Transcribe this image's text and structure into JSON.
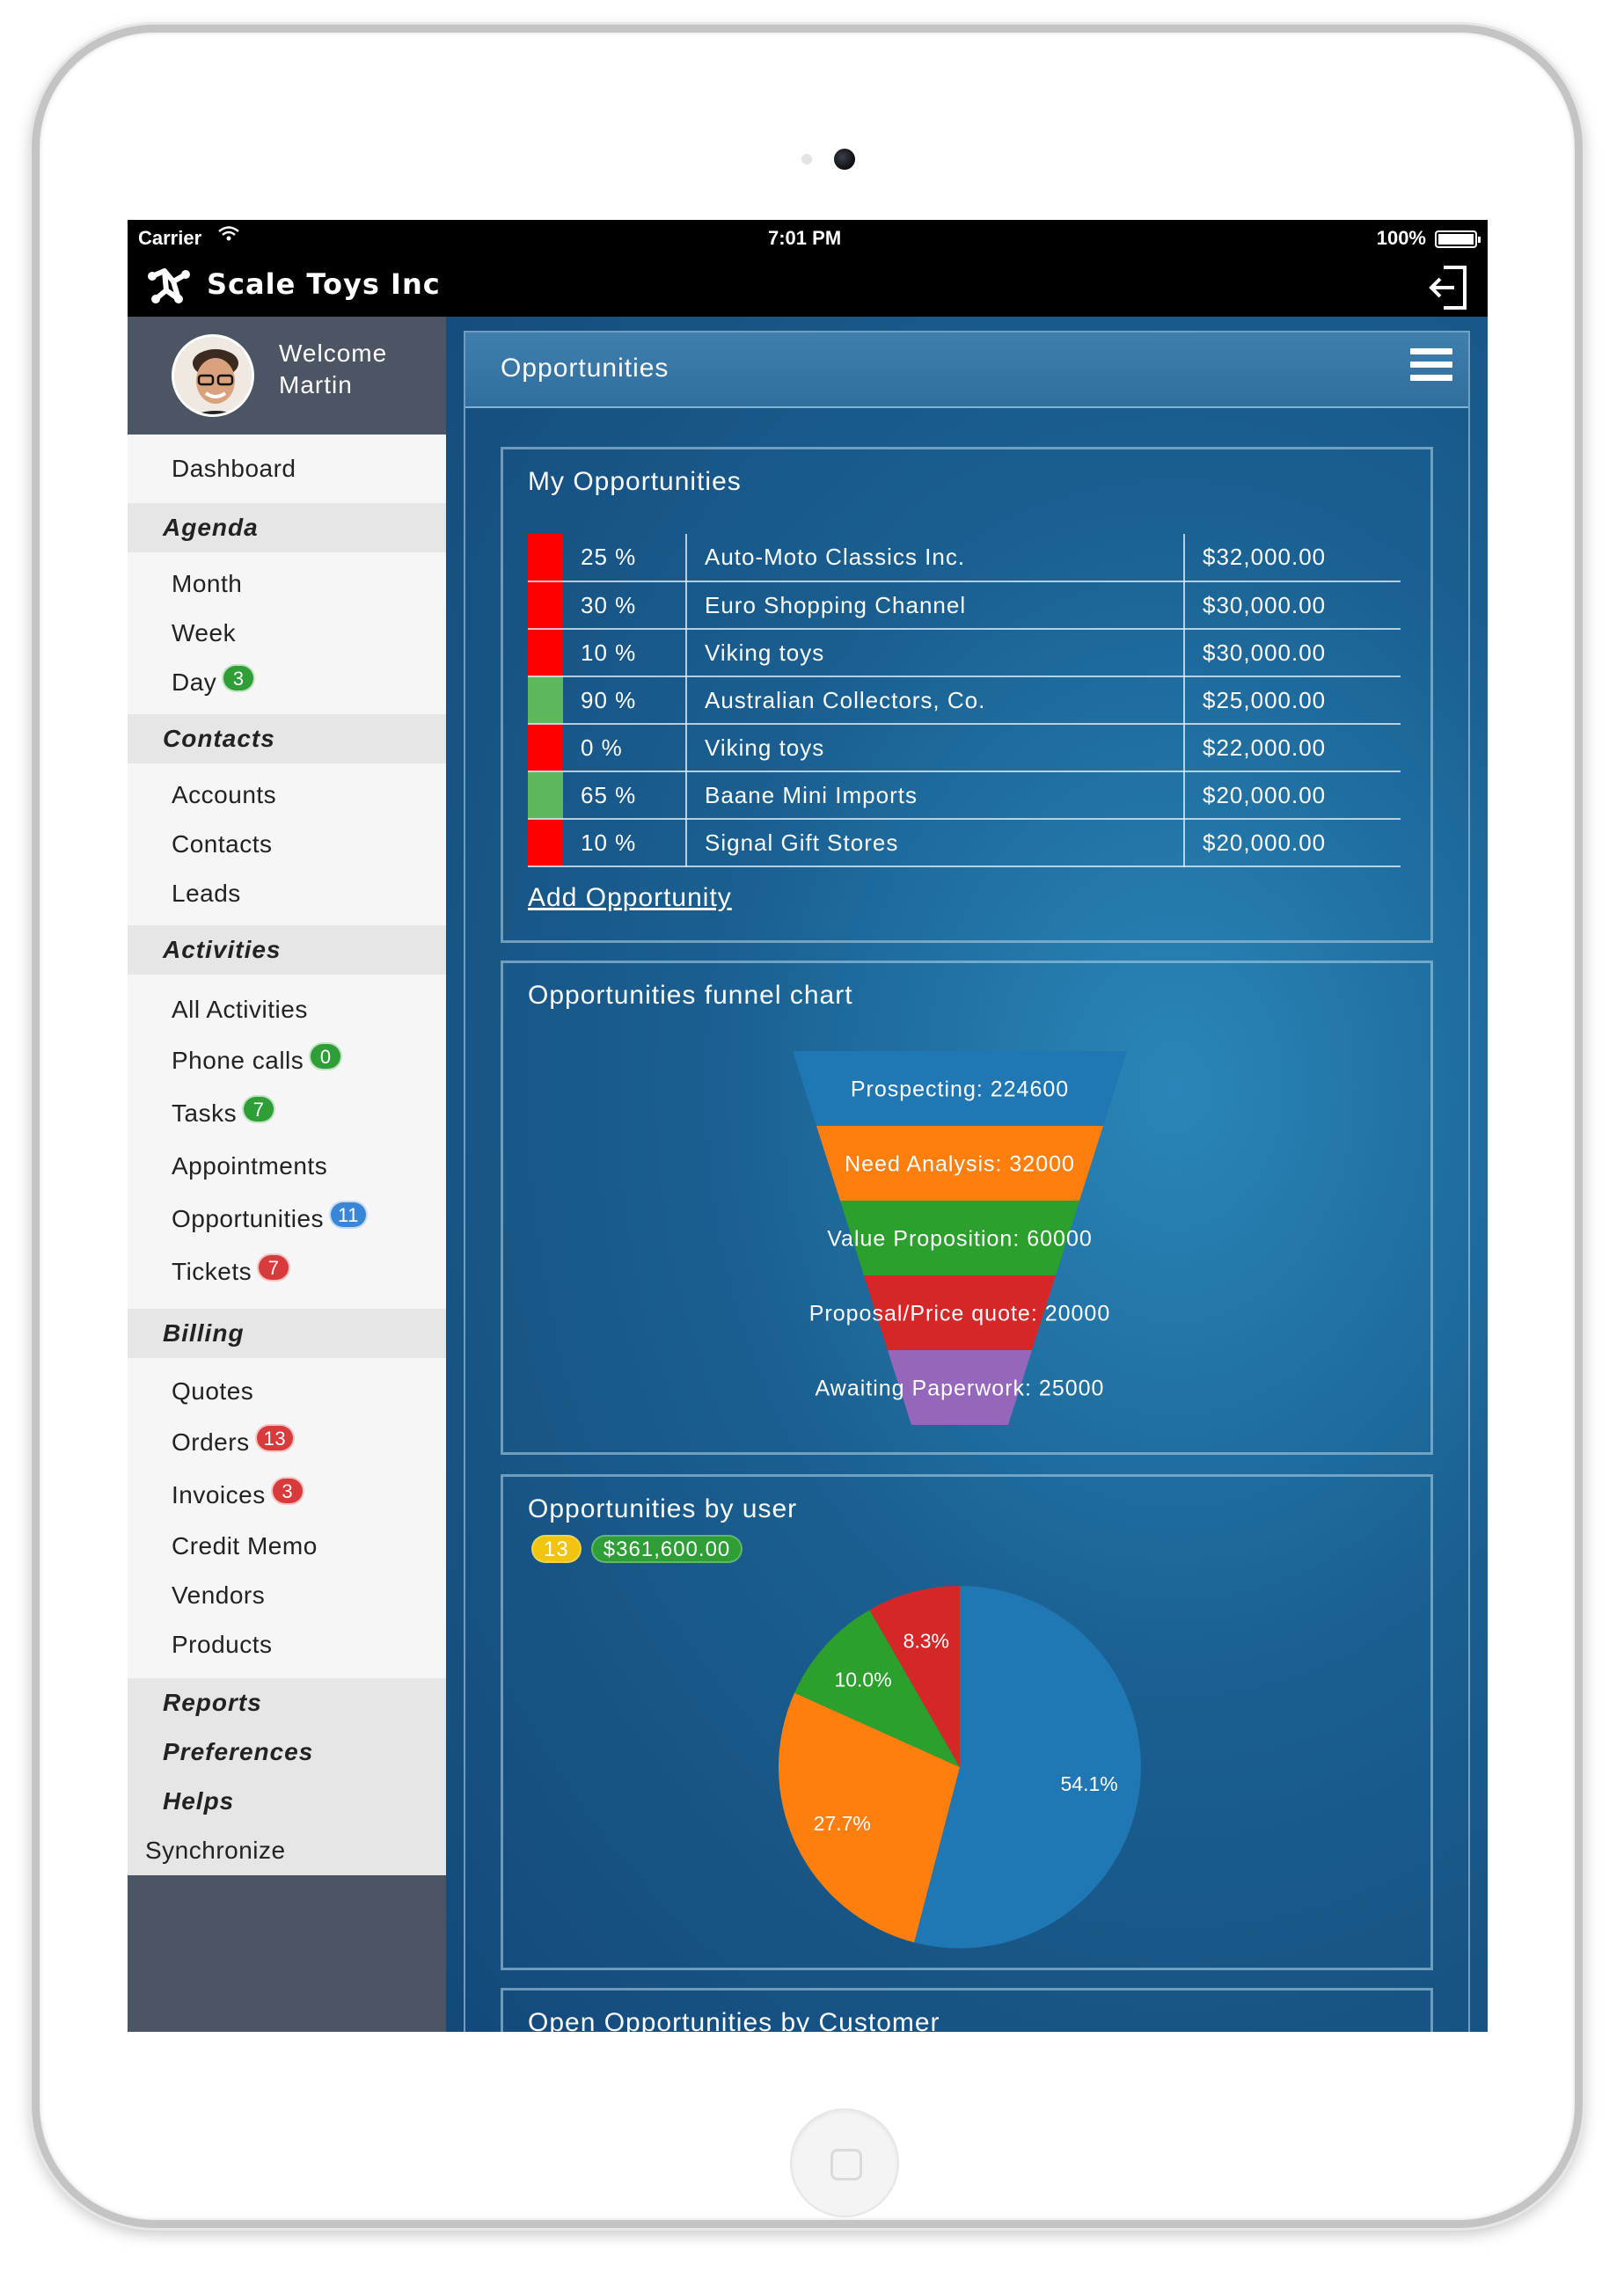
{
  "status_bar": {
    "carrier": "Carrier",
    "time": "7:01 PM",
    "battery": "100%"
  },
  "app": {
    "title": "Scale Toys Inc"
  },
  "user": {
    "welcome": "Welcome",
    "name": "Martin"
  },
  "sidebar": {
    "dashboard": "Dashboard",
    "agenda": {
      "title": "Agenda",
      "items": [
        {
          "label": "Month"
        },
        {
          "label": "Week"
        },
        {
          "label": "Day",
          "badge": "3"
        }
      ]
    },
    "contacts": {
      "title": "Contacts",
      "items": [
        {
          "label": "Accounts"
        },
        {
          "label": "Contacts"
        },
        {
          "label": "Leads"
        }
      ]
    },
    "activities": {
      "title": "Activities",
      "items": [
        {
          "label": "All Activities"
        },
        {
          "label": "Phone calls",
          "badge": "0"
        },
        {
          "label": "Tasks",
          "badge": "7"
        },
        {
          "label": "Appointments"
        },
        {
          "label": "Opportunities",
          "badge": "11"
        },
        {
          "label": "Tickets",
          "badge": "7"
        }
      ]
    },
    "billing": {
      "title": "Billing",
      "items": [
        {
          "label": "Quotes"
        },
        {
          "label": "Orders",
          "badge": "13"
        },
        {
          "label": "Invoices",
          "badge": "3"
        },
        {
          "label": "Credit Memo"
        },
        {
          "label": "Vendors"
        },
        {
          "label": "Products"
        }
      ]
    },
    "reports": "Reports",
    "preferences": "Preferences",
    "helps": "Helps",
    "synchronize": "Synchronize"
  },
  "page": {
    "title": "Opportunities"
  },
  "my_opportunities": {
    "title": "My Opportunities",
    "add_link": "Add Opportunity",
    "colors": {
      "red": "#ff0000",
      "green": "#5cb85c"
    },
    "rows": [
      {
        "status": "red",
        "pct": "25 %",
        "name": "Auto-Moto Classics Inc.",
        "amount": "$32,000.00"
      },
      {
        "status": "red",
        "pct": "30 %",
        "name": "Euro Shopping Channel",
        "amount": "$30,000.00"
      },
      {
        "status": "red",
        "pct": "10 %",
        "name": "Viking toys",
        "amount": "$30,000.00"
      },
      {
        "status": "green",
        "pct": "90 %",
        "name": "Australian Collectors, Co.",
        "amount": "$25,000.00"
      },
      {
        "status": "red",
        "pct": "0 %",
        "name": "Viking toys",
        "amount": "$22,000.00"
      },
      {
        "status": "green",
        "pct": "65 %",
        "name": "Baane Mini Imports",
        "amount": "$20,000.00"
      },
      {
        "status": "red",
        "pct": "10 %",
        "name": "Signal Gift Stores",
        "amount": "$20,000.00"
      }
    ]
  },
  "funnel": {
    "title": "Opportunities funnel chart",
    "stages": [
      {
        "label": "Prospecting: 224600",
        "color": "#1f77b4"
      },
      {
        "label": "Need Analysis: 32000",
        "color": "#ff7f0e"
      },
      {
        "label": "Value Proposition: 60000",
        "color": "#2ca02c"
      },
      {
        "label": "Proposal/Price quote: 20000",
        "color": "#d62728"
      },
      {
        "label": "Awaiting Paperwork: 25000",
        "color": "#9467bd"
      }
    ]
  },
  "by_user": {
    "title": "Opportunities by user",
    "count_badge": "13",
    "total_badge": "$361,600.00"
  },
  "open_by_customer": {
    "title": "Open Opportunities by Customer"
  },
  "chart_data": [
    {
      "type": "funnel",
      "title": "Opportunities funnel chart",
      "categories": [
        "Prospecting",
        "Need Analysis",
        "Value Proposition",
        "Proposal/Price quote",
        "Awaiting Paperwork"
      ],
      "values": [
        224600,
        32000,
        60000,
        20000,
        25000
      ],
      "colors": [
        "#1f77b4",
        "#ff7f0e",
        "#2ca02c",
        "#d62728",
        "#9467bd"
      ]
    },
    {
      "type": "pie",
      "title": "Opportunities by user",
      "slices": [
        {
          "label": "54.1%",
          "value": 54.1,
          "color": "#1f77b4"
        },
        {
          "label": "27.7%",
          "value": 27.7,
          "color": "#ff7f0e"
        },
        {
          "label": "10.0%",
          "value": 10.0,
          "color": "#2ca02c"
        },
        {
          "label": "8.3%",
          "value": 8.3,
          "color": "#d62728"
        }
      ]
    }
  ]
}
